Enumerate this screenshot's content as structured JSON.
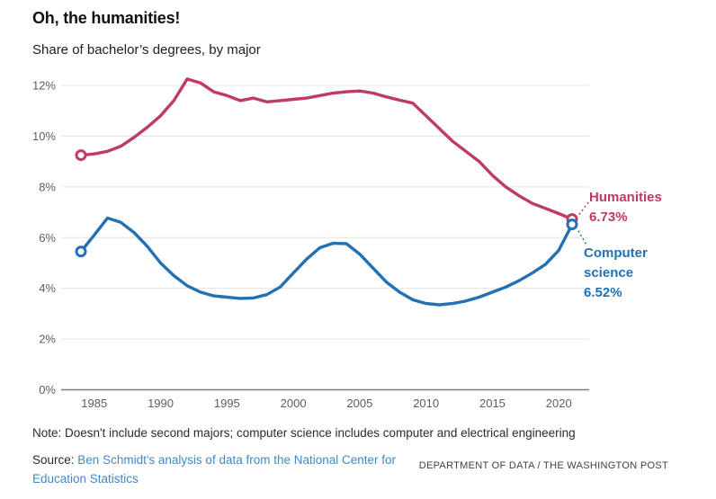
{
  "header": {
    "title": "Oh, the humanities!",
    "subtitle": "Share of bachelor’s degrees, by major"
  },
  "chart_data": {
    "type": "line",
    "x": [
      1984,
      1985,
      1986,
      1987,
      1988,
      1989,
      1990,
      1991,
      1992,
      1993,
      1994,
      1995,
      1996,
      1997,
      1998,
      1999,
      2000,
      2001,
      2002,
      2003,
      2004,
      2005,
      2006,
      2007,
      2008,
      2009,
      2010,
      2011,
      2012,
      2013,
      2014,
      2015,
      2016,
      2017,
      2018,
      2019,
      2020,
      2021
    ],
    "series": [
      {
        "name": "Humanities",
        "color": "#bf3a64",
        "values": [
          9.25,
          9.3,
          9.4,
          9.6,
          9.95,
          10.35,
          10.8,
          11.4,
          12.25,
          12.1,
          11.75,
          11.6,
          11.4,
          11.5,
          11.35,
          11.4,
          11.45,
          11.5,
          11.6,
          11.7,
          11.75,
          11.78,
          11.7,
          11.55,
          11.42,
          11.3,
          10.8,
          10.3,
          9.8,
          9.4,
          9.0,
          8.45,
          8.0,
          7.65,
          7.35,
          7.15,
          6.95,
          6.73
        ],
        "end_label": "6.73%"
      },
      {
        "name": "Computer science",
        "color": "#2271b3",
        "values": [
          5.45,
          6.1,
          6.77,
          6.6,
          6.2,
          5.65,
          5.0,
          4.5,
          4.1,
          3.85,
          3.7,
          3.65,
          3.6,
          3.62,
          3.75,
          4.05,
          4.6,
          5.15,
          5.6,
          5.78,
          5.76,
          5.35,
          4.8,
          4.25,
          3.85,
          3.55,
          3.4,
          3.35,
          3.4,
          3.5,
          3.65,
          3.85,
          4.05,
          4.3,
          4.6,
          4.95,
          5.5,
          6.52
        ],
        "end_label": "6.52%"
      }
    ],
    "y_ticks": {
      "values": [
        0,
        2,
        4,
        6,
        8,
        10,
        12
      ],
      "labels": [
        "0%",
        "2%",
        "4%",
        "6%",
        "8%",
        "10%",
        "12%"
      ]
    },
    "x_ticks": {
      "values": [
        1985,
        1990,
        1995,
        2000,
        2005,
        2010,
        2015,
        2020
      ],
      "labels": [
        "1985",
        "1990",
        "1995",
        "2000",
        "2005",
        "2010",
        "2015",
        "2020"
      ]
    },
    "xlim": [
      1984,
      2021
    ],
    "ylim": [
      0,
      12.6
    ],
    "grid": true,
    "legend_position": "right-end-labels",
    "marker_style": "open circles on first and last points"
  },
  "annotations": {
    "humanities": {
      "series": "Humanities",
      "value": "6.73%",
      "color": "#bf3a64"
    },
    "computer_science": {
      "series": "Computer science",
      "value": "6.52%",
      "color": "#2271b3"
    }
  },
  "footer": {
    "note": "Note: Doesn't include second majors; computer science includes computer and electrical engineering",
    "source_prefix": "Source:",
    "source_link": "Ben Schmidt's analysis of data from the National Center for Education Statistics",
    "link_color": "#4189c7",
    "credit": "DEPARTMENT OF DATA / THE WASHINGTON POST"
  }
}
